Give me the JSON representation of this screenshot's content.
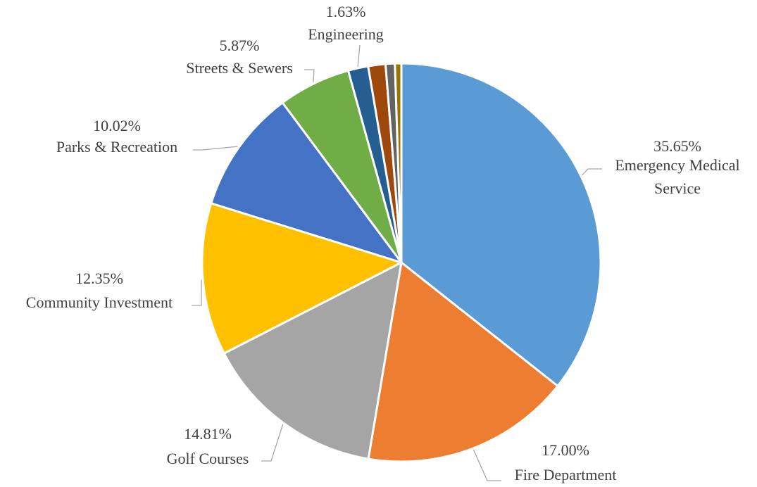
{
  "chart_data": {
    "type": "pie",
    "title": "",
    "slices": [
      {
        "label": "Emergency Medical Service",
        "value": 35.65,
        "pct_text": "35.65%",
        "color": "#5b9bd5"
      },
      {
        "label": "Fire Department",
        "value": 17.0,
        "pct_text": "17.00%",
        "color": "#ed7d31"
      },
      {
        "label": "Golf Courses",
        "value": 14.81,
        "pct_text": "14.81%",
        "color": "#a5a5a5"
      },
      {
        "label": "Community Investment",
        "value": 12.35,
        "pct_text": "12.35%",
        "color": "#ffc000"
      },
      {
        "label": "Parks & Recreation",
        "value": 10.02,
        "pct_text": "10.02%",
        "color": "#4472c4"
      },
      {
        "label": "Streets & Sewers",
        "value": 5.87,
        "pct_text": "5.87%",
        "color": "#70ad47"
      },
      {
        "label": "Engineering",
        "value": 1.63,
        "pct_text": "1.63%",
        "color": "#255e91"
      },
      {
        "label": "",
        "value": 1.4,
        "pct_text": "",
        "color": "#9e480e"
      },
      {
        "label": "",
        "value": 0.75,
        "pct_text": "",
        "color": "#636363"
      },
      {
        "label": "",
        "value": 0.52,
        "pct_text": "",
        "color": "#997300"
      }
    ]
  }
}
